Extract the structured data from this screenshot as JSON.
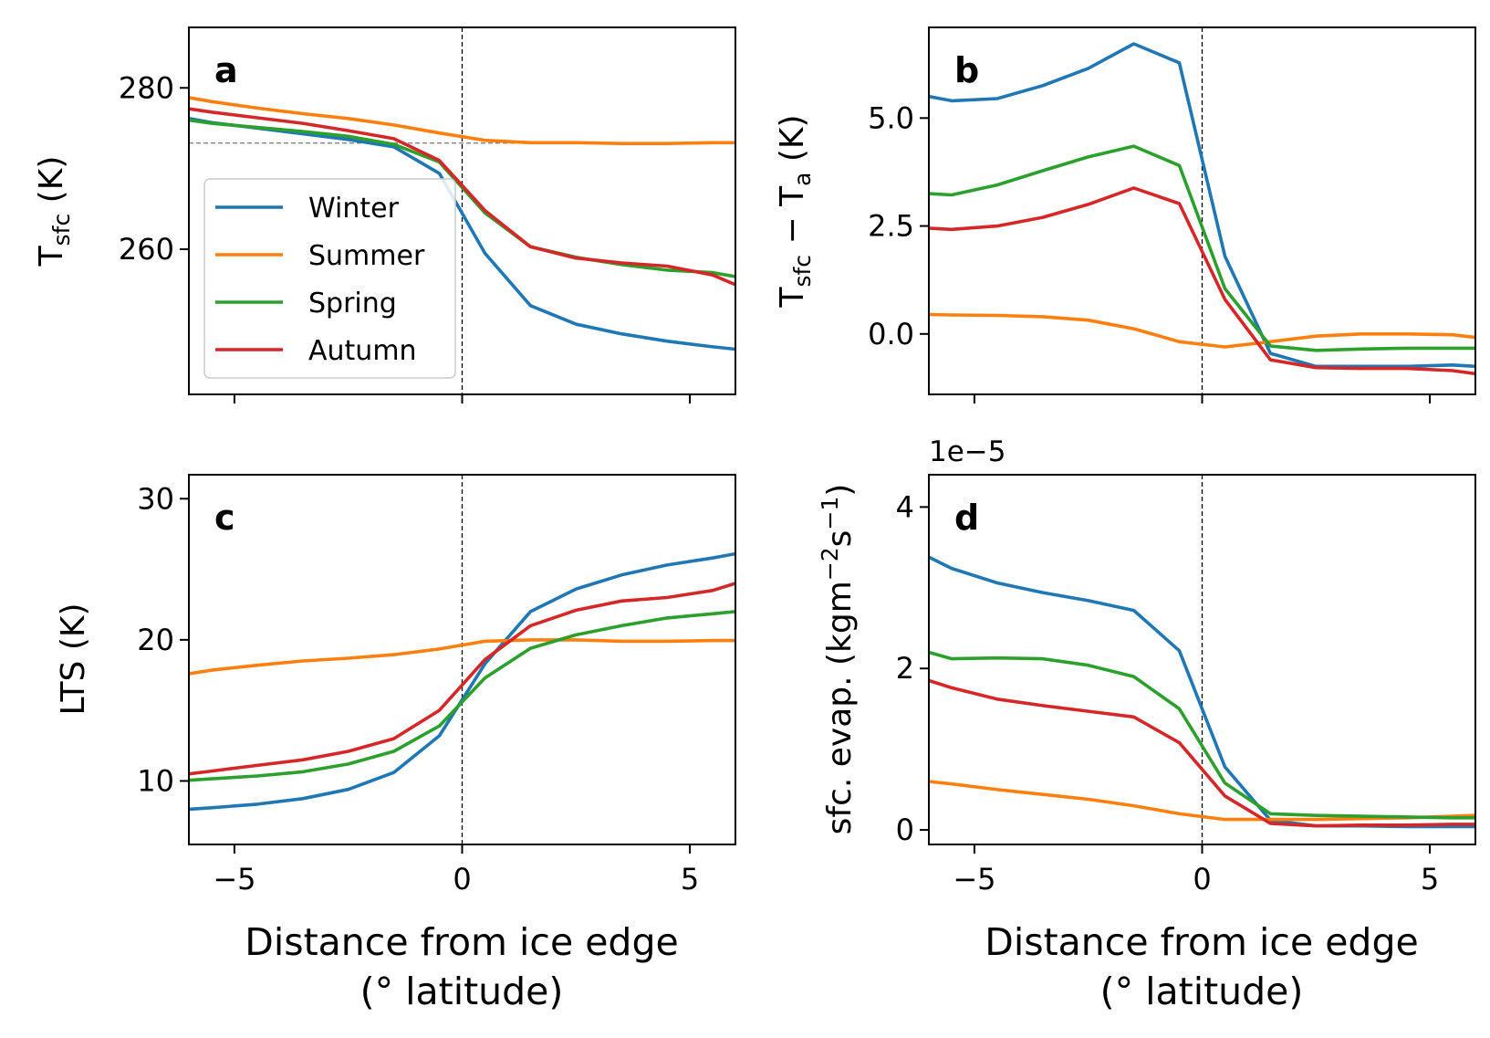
{
  "figure": {
    "xlabel_line1": "Distance from ice edge",
    "xlabel_line2": "(° latitude)"
  },
  "colors": {
    "Winter": "#1f77b4",
    "Summer": "#ff7f0e",
    "Spring": "#2ca02c",
    "Autumn": "#d62728"
  },
  "chart_data": [
    {
      "panel": "a",
      "type": "line",
      "ylabel_main": "T",
      "ylabel_sub": "sfc",
      "ylabel_unit": " (K)",
      "xlim": [
        -6,
        6
      ],
      "ylim": [
        242,
        287.5
      ],
      "xticks": [
        -5,
        0,
        5
      ],
      "xtick_labels": [
        "",
        "",
        ""
      ],
      "yticks": [
        260,
        280
      ],
      "ytick_labels": [
        "260",
        "280"
      ],
      "vline": 0,
      "hline": 273.15,
      "legend": {
        "loc": "center-left",
        "entries": [
          "Winter",
          "Summer",
          "Spring",
          "Autumn"
        ]
      },
      "x": [
        -6,
        -5.5,
        -4.5,
        -3.5,
        -2.5,
        -1.5,
        -0.5,
        0.5,
        1.5,
        2.5,
        3.5,
        4.5,
        5.5,
        6
      ],
      "series": [
        {
          "name": "Winter",
          "values": [
            276.2,
            275.7,
            275.0,
            274.3,
            273.6,
            272.7,
            269.4,
            259.5,
            253.0,
            250.7,
            249.5,
            248.6,
            247.9,
            247.6
          ]
        },
        {
          "name": "Summer",
          "values": [
            278.8,
            278.3,
            277.5,
            276.8,
            276.2,
            275.4,
            274.4,
            273.5,
            273.2,
            273.2,
            273.1,
            273.1,
            273.2,
            273.2
          ]
        },
        {
          "name": "Spring",
          "values": [
            276.0,
            275.6,
            275.1,
            274.6,
            274.0,
            273.0,
            270.8,
            264.5,
            260.3,
            259.0,
            258.1,
            257.4,
            257.1,
            256.6
          ]
        },
        {
          "name": "Autumn",
          "values": [
            277.4,
            277.0,
            276.3,
            275.6,
            274.7,
            273.7,
            271.0,
            264.8,
            260.3,
            258.9,
            258.3,
            257.9,
            256.8,
            255.6
          ]
        }
      ]
    },
    {
      "panel": "b",
      "type": "line",
      "ylabel_main": "T",
      "ylabel_sub": "sfc",
      "ylabel_minus": " − T",
      "ylabel_sub2": "a",
      "ylabel_unit": " (K)",
      "xlim": [
        -6,
        6
      ],
      "ylim": [
        -1.4,
        7.1
      ],
      "xticks": [
        -5,
        0,
        5
      ],
      "xtick_labels": [
        "",
        "",
        ""
      ],
      "yticks": [
        0,
        2.5,
        5
      ],
      "ytick_labels": [
        "0.0",
        "2.5",
        "5.0"
      ],
      "vline": 0,
      "x": [
        -6,
        -5.5,
        -4.5,
        -3.5,
        -2.5,
        -1.5,
        -0.5,
        0.5,
        1.5,
        2.5,
        3.5,
        4.5,
        5.5,
        6
      ],
      "series": [
        {
          "name": "Winter",
          "values": [
            5.5,
            5.4,
            5.45,
            5.75,
            6.15,
            6.72,
            6.28,
            1.8,
            -0.45,
            -0.75,
            -0.75,
            -0.75,
            -0.72,
            -0.75
          ]
        },
        {
          "name": "Summer",
          "values": [
            0.45,
            0.44,
            0.43,
            0.4,
            0.32,
            0.12,
            -0.18,
            -0.3,
            -0.18,
            -0.05,
            0.0,
            0.0,
            -0.02,
            -0.08
          ]
        },
        {
          "name": "Spring",
          "values": [
            3.25,
            3.22,
            3.45,
            3.78,
            4.1,
            4.35,
            3.9,
            1.05,
            -0.28,
            -0.38,
            -0.35,
            -0.33,
            -0.33,
            -0.33
          ]
        },
        {
          "name": "Autumn",
          "values": [
            2.45,
            2.42,
            2.5,
            2.7,
            3.0,
            3.38,
            3.02,
            0.8,
            -0.6,
            -0.78,
            -0.8,
            -0.8,
            -0.85,
            -0.92
          ]
        }
      ]
    },
    {
      "panel": "c",
      "type": "line",
      "ylabel_main": "LTS (K)",
      "xlim": [
        -6,
        6
      ],
      "ylim": [
        5.5,
        31.7
      ],
      "xticks": [
        -5,
        0,
        5
      ],
      "xtick_labels": [
        "−5",
        "0",
        "5"
      ],
      "yticks": [
        10,
        20,
        30
      ],
      "ytick_labels": [
        "10",
        "20",
        "30"
      ],
      "vline": 0,
      "x": [
        -6,
        -5.5,
        -4.5,
        -3.5,
        -2.5,
        -1.5,
        -0.5,
        0.5,
        1.5,
        2.5,
        3.5,
        4.5,
        5.5,
        6
      ],
      "series": [
        {
          "name": "Winter",
          "values": [
            8.0,
            8.1,
            8.35,
            8.75,
            9.4,
            10.6,
            13.2,
            18.3,
            22.0,
            23.6,
            24.6,
            25.3,
            25.8,
            26.1
          ]
        },
        {
          "name": "Summer",
          "values": [
            17.6,
            17.85,
            18.2,
            18.5,
            18.7,
            18.95,
            19.35,
            19.9,
            20.0,
            20.0,
            19.9,
            19.9,
            19.95,
            19.95
          ]
        },
        {
          "name": "Spring",
          "values": [
            10.05,
            10.15,
            10.35,
            10.65,
            11.2,
            12.1,
            13.9,
            17.3,
            19.4,
            20.35,
            21.0,
            21.55,
            21.85,
            22.0
          ]
        },
        {
          "name": "Autumn",
          "values": [
            10.5,
            10.7,
            11.1,
            11.5,
            12.1,
            13.0,
            15.0,
            18.6,
            21.0,
            22.1,
            22.75,
            23.0,
            23.5,
            24.0
          ]
        }
      ]
    },
    {
      "panel": "d",
      "type": "line",
      "ylabel_main": "sfc. evap. (kgm",
      "ylabel_exp1": "−2",
      "ylabel_mid": "s",
      "ylabel_exp2": "−1",
      "ylabel_end": ")",
      "offset_text": "1e−5",
      "xlim": [
        -6,
        6
      ],
      "ylim": [
        -0.18,
        4.4
      ],
      "xticks": [
        -5,
        0,
        5
      ],
      "xtick_labels": [
        "−5",
        "0",
        "5"
      ],
      "yticks": [
        0,
        2,
        4
      ],
      "ytick_labels": [
        "0",
        "2",
        "4"
      ],
      "vline": 0,
      "x": [
        -6,
        -5.5,
        -4.5,
        -3.5,
        -2.5,
        -1.5,
        -0.5,
        0.5,
        1.5,
        2.5,
        3.5,
        4.5,
        5.5,
        6
      ],
      "series": [
        {
          "name": "Winter",
          "values": [
            3.38,
            3.24,
            3.06,
            2.94,
            2.84,
            2.72,
            2.22,
            0.78,
            0.12,
            0.05,
            0.05,
            0.04,
            0.04,
            0.04
          ]
        },
        {
          "name": "Summer",
          "values": [
            0.6,
            0.57,
            0.5,
            0.44,
            0.38,
            0.3,
            0.2,
            0.13,
            0.13,
            0.13,
            0.14,
            0.15,
            0.17,
            0.18
          ]
        },
        {
          "name": "Spring",
          "values": [
            2.2,
            2.12,
            2.13,
            2.12,
            2.04,
            1.9,
            1.5,
            0.58,
            0.2,
            0.18,
            0.17,
            0.16,
            0.15,
            0.15
          ]
        },
        {
          "name": "Autumn",
          "values": [
            1.85,
            1.76,
            1.62,
            1.54,
            1.47,
            1.4,
            1.08,
            0.42,
            0.08,
            0.05,
            0.06,
            0.06,
            0.07,
            0.07
          ]
        }
      ]
    }
  ]
}
